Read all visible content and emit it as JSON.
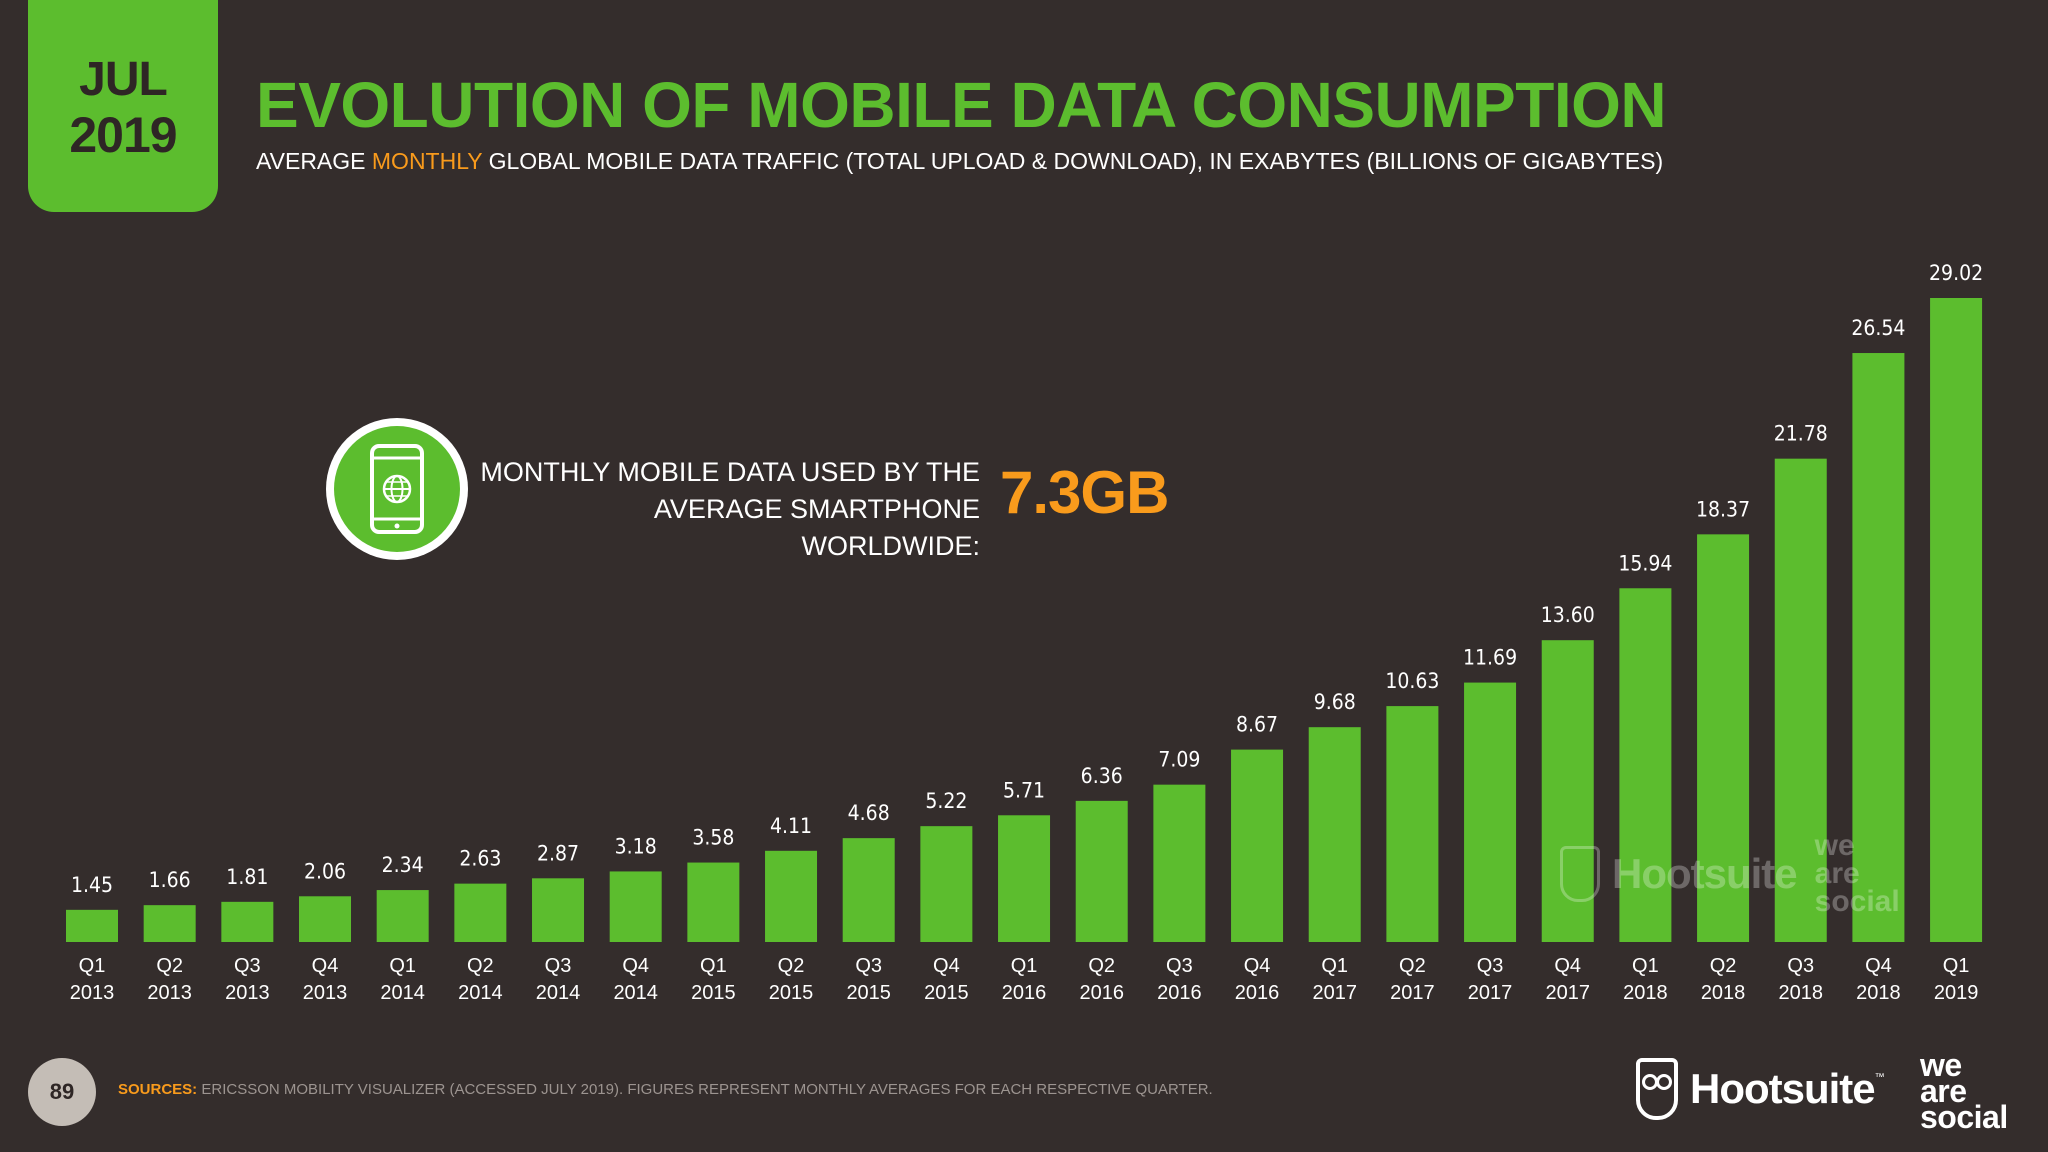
{
  "header": {
    "month": "JUL",
    "year": "2019",
    "title": "EVOLUTION OF MOBILE DATA CONSUMPTION",
    "subtitle_pre": "AVERAGE ",
    "subtitle_highlight": "MONTHLY",
    "subtitle_post": " GLOBAL MOBILE DATA TRAFFIC (TOTAL UPLOAD & DOWNLOAD), IN EXABYTES (BILLIONS OF GIGABYTES)"
  },
  "callout": {
    "line1": "MONTHLY MOBILE DATA USED BY THE",
    "line2": "AVERAGE SMARTPHONE WORLDWIDE:",
    "value": "7.3GB",
    "icon": "smartphone-globe-icon"
  },
  "chart_data": {
    "type": "bar",
    "categories": [
      [
        "Q1",
        "2013"
      ],
      [
        "Q2",
        "2013"
      ],
      [
        "Q3",
        "2013"
      ],
      [
        "Q4",
        "2013"
      ],
      [
        "Q1",
        "2014"
      ],
      [
        "Q2",
        "2014"
      ],
      [
        "Q3",
        "2014"
      ],
      [
        "Q4",
        "2014"
      ],
      [
        "Q1",
        "2015"
      ],
      [
        "Q2",
        "2015"
      ],
      [
        "Q3",
        "2015"
      ],
      [
        "Q4",
        "2015"
      ],
      [
        "Q1",
        "2016"
      ],
      [
        "Q2",
        "2016"
      ],
      [
        "Q3",
        "2016"
      ],
      [
        "Q4",
        "2016"
      ],
      [
        "Q1",
        "2017"
      ],
      [
        "Q2",
        "2017"
      ],
      [
        "Q3",
        "2017"
      ],
      [
        "Q4",
        "2017"
      ],
      [
        "Q1",
        "2018"
      ],
      [
        "Q2",
        "2018"
      ],
      [
        "Q3",
        "2018"
      ],
      [
        "Q4",
        "2018"
      ],
      [
        "Q1",
        "2019"
      ]
    ],
    "values": [
      1.45,
      1.66,
      1.81,
      2.06,
      2.34,
      2.63,
      2.87,
      3.18,
      3.58,
      4.11,
      4.68,
      5.22,
      5.71,
      6.36,
      7.09,
      8.67,
      9.68,
      10.63,
      11.69,
      13.6,
      15.94,
      18.37,
      21.78,
      26.54,
      29.02
    ],
    "value_labels": [
      "1.45",
      "1.66",
      "1.81",
      "2.06",
      "2.34",
      "2.63",
      "2.87",
      "3.18",
      "3.58",
      "4.11",
      "4.68",
      "5.22",
      "5.71",
      "6.36",
      "7.09",
      "8.67",
      "9.68",
      "10.63",
      "11.69",
      "13.60",
      "15.94",
      "18.37",
      "21.78",
      "26.54",
      "29.02"
    ],
    "ylim": [
      0,
      29.02
    ],
    "grid": false,
    "legend": "none",
    "bar_color": "#5cbd2e"
  },
  "watermark": {
    "brand": "Hootsuite",
    "tm": "™",
    "partner": [
      "we",
      "are",
      "social"
    ]
  },
  "footer": {
    "page_number": "89",
    "sources_label": "SOURCES:",
    "sources_text": " ERICSSON MOBILITY VISUALIZER (ACCESSED JULY 2019). FIGURES REPRESENT MONTHLY AVERAGES FOR EACH RESPECTIVE QUARTER.",
    "logo_brand": "Hootsuite",
    "logo_tm": "™",
    "logo_partner": [
      "we",
      "are",
      "social"
    ]
  },
  "colors": {
    "background": "#342d2c",
    "accent_green": "#5cbd2e",
    "accent_orange": "#f99b1c"
  }
}
